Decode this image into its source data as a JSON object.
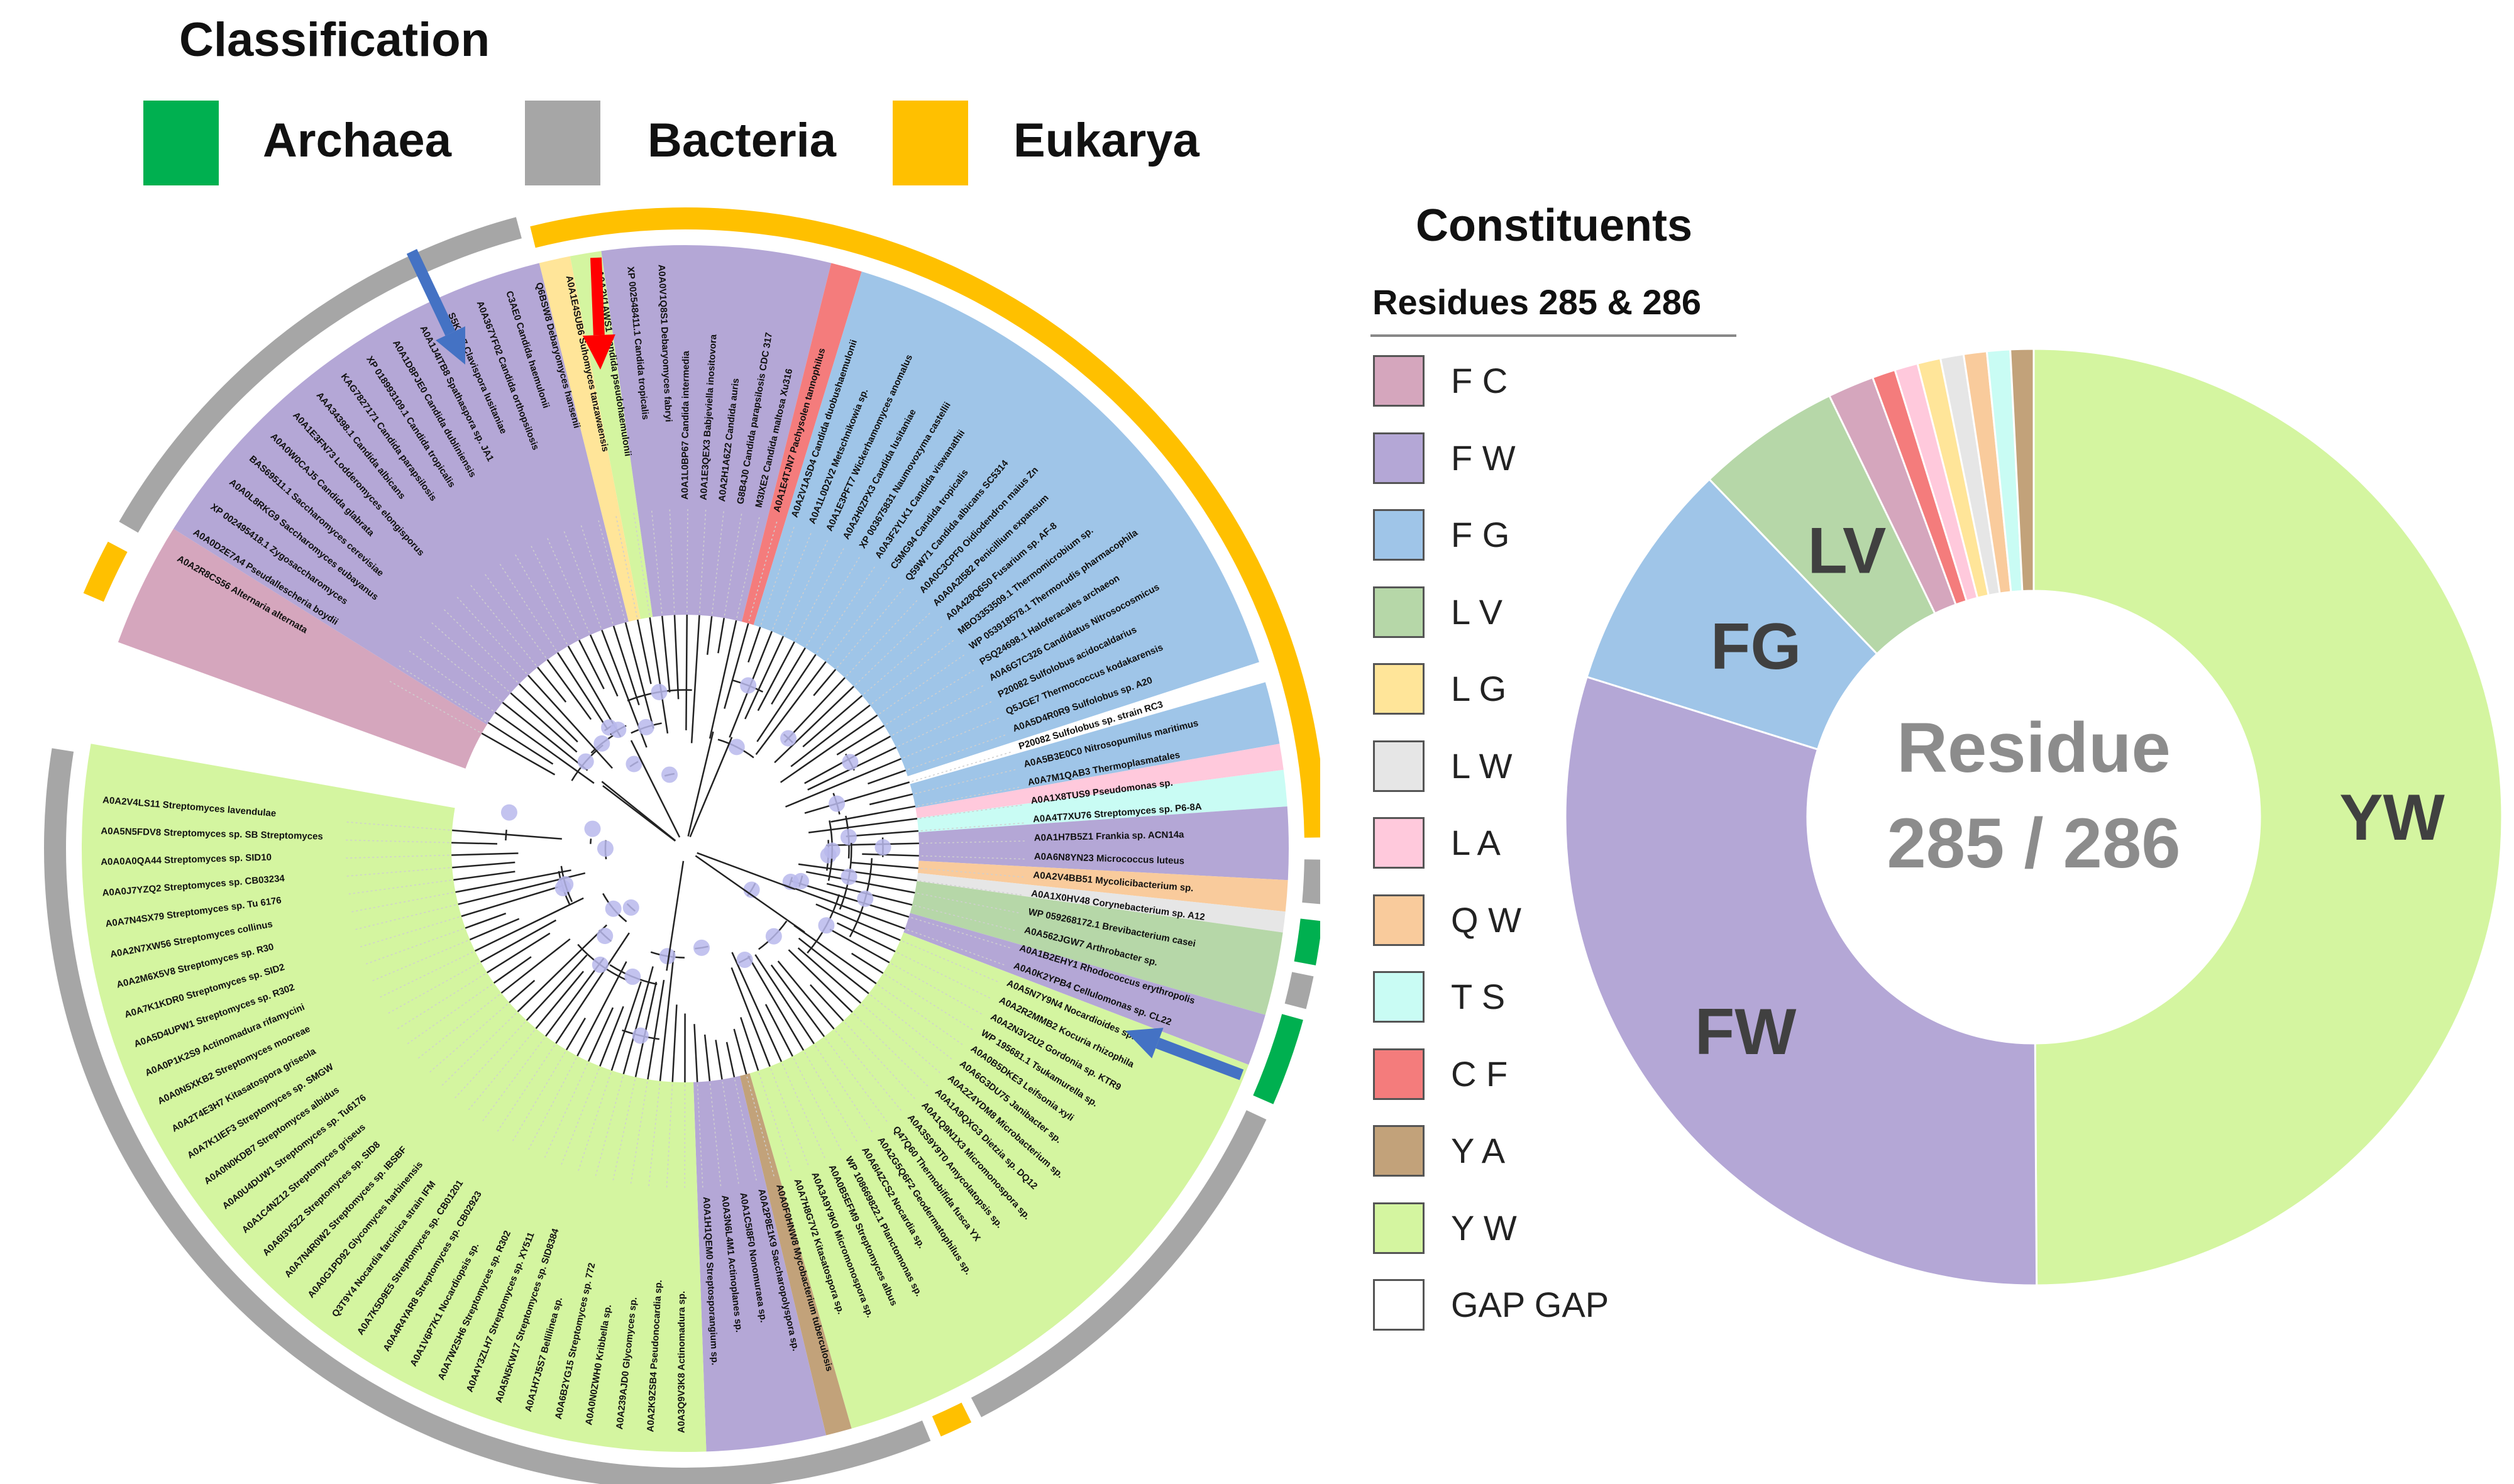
{
  "classification": {
    "title": "Classification",
    "items": [
      {
        "label": "Archaea",
        "color": "#00b050"
      },
      {
        "label": "Bacteria",
        "color": "#a6a6a6"
      },
      {
        "label": "Eukarya",
        "color": "#ffc000"
      }
    ]
  },
  "constituents": {
    "title": "Constituents",
    "subtitle": "Residues 285 & 286",
    "items": [
      {
        "label": "F C",
        "color": "#d5a6bd"
      },
      {
        "label": "F W",
        "color": "#b4a7d6"
      },
      {
        "label": "F G",
        "color": "#9fc5e8"
      },
      {
        "label": "L V",
        "color": "#b6d7a8"
      },
      {
        "label": "L G",
        "color": "#ffe599"
      },
      {
        "label": "L W",
        "color": "#e6e6e6"
      },
      {
        "label": "L A",
        "color": "#ffc9dc"
      },
      {
        "label": "Q W",
        "color": "#f9cb9c"
      },
      {
        "label": "T S",
        "color": "#c9fcf4"
      },
      {
        "label": "C F",
        "color": "#f47c7c"
      },
      {
        "label": "Y A",
        "color": "#c2a27a"
      },
      {
        "label": "Y W",
        "color": "#d4f5a0"
      },
      {
        "label": "GAP GAP",
        "color": "#ffffff"
      }
    ]
  },
  "chart_data": {
    "type": "pie",
    "title": "Residue 285 / 286",
    "title_lines": [
      "Residue",
      "285 / 286"
    ],
    "slices": [
      {
        "label": "YW",
        "value": 50.0,
        "color": "#d4f5a0",
        "shown": true
      },
      {
        "label": "FW",
        "value": 30.0,
        "color": "#b4a7d6",
        "shown": true
      },
      {
        "label": "FG",
        "value": 8.0,
        "color": "#9fc5e8",
        "shown": true
      },
      {
        "label": "LV",
        "value": 5.0,
        "color": "#b6d7a8",
        "shown": true
      },
      {
        "label": "FC",
        "value": 1.6,
        "color": "#d5a6bd",
        "shown": false
      },
      {
        "label": "CF",
        "value": 0.8,
        "color": "#f47c7c",
        "shown": false
      },
      {
        "label": "LA",
        "value": 0.8,
        "color": "#ffc9dc",
        "shown": false
      },
      {
        "label": "LG",
        "value": 0.8,
        "color": "#ffe599",
        "shown": false
      },
      {
        "label": "LW",
        "value": 0.8,
        "color": "#e6e6e6",
        "shown": false
      },
      {
        "label": "QW",
        "value": 0.8,
        "color": "#f9cb9c",
        "shown": false
      },
      {
        "label": "TS",
        "value": 0.8,
        "color": "#c9fcf4",
        "shown": false
      },
      {
        "label": "YA",
        "value": 0.8,
        "color": "#c2a27a",
        "shown": false
      }
    ]
  },
  "tree": {
    "sectors": [
      {
        "color": "#d5a6bd",
        "start": -70,
        "end": -58
      },
      {
        "color": "#b4a7d6",
        "start": -58,
        "end": -14
      },
      {
        "color": "#ffe599",
        "start": -14,
        "end": -11
      },
      {
        "color": "#d4f5a0",
        "start": -11,
        "end": -8
      },
      {
        "color": "#b4a7d6",
        "start": -8,
        "end": 14
      },
      {
        "color": "#f47c7c",
        "start": 14,
        "end": 17
      },
      {
        "color": "#9fc5e8",
        "start": 17,
        "end": 72
      },
      {
        "color": "#ffffff",
        "start": 72,
        "end": 74
      },
      {
        "color": "#9fc5e8",
        "start": 74,
        "end": 80
      },
      {
        "color": "#ffc9dc",
        "start": 80,
        "end": 82.5
      },
      {
        "color": "#c9fcf4",
        "start": 82.5,
        "end": 86
      },
      {
        "color": "#b4a7d6",
        "start": 86,
        "end": 93
      },
      {
        "color": "#f9cb9c",
        "start": 93,
        "end": 96
      },
      {
        "color": "#e6e6e6",
        "start": 96,
        "end": 98
      },
      {
        "color": "#b6d7a8",
        "start": 98,
        "end": 106
      },
      {
        "color": "#b4a7d6",
        "start": 106,
        "end": 111
      },
      {
        "color": "#d4f5a0",
        "start": 111,
        "end": 164
      },
      {
        "color": "#c2a27a",
        "start": 164,
        "end": 166.5
      },
      {
        "color": "#b4a7d6",
        "start": 166.5,
        "end": 178
      },
      {
        "color": "#d4f5a0",
        "start": 178,
        "end": 280
      }
    ],
    "outer_ring": [
      {
        "color": "#ffc000",
        "start": -14,
        "end": 89
      },
      {
        "color": "#a6a6a6",
        "start": 91,
        "end": 95
      },
      {
        "color": "#00b050",
        "start": 96.5,
        "end": 100.5
      },
      {
        "color": "#a6a6a6",
        "start": 101.5,
        "end": 104.5
      },
      {
        "color": "#00b050",
        "start": 105.5,
        "end": 113.5
      },
      {
        "color": "#a6a6a6",
        "start": 115,
        "end": 152.5
      },
      {
        "color": "#ffc000",
        "start": 153.5,
        "end": 156.5
      },
      {
        "color": "#a6a6a6",
        "start": 157.5,
        "end": 279
      },
      {
        "color": "#ffc000",
        "start": -67,
        "end": -62
      },
      {
        "color": "#a6a6a6",
        "start": -60,
        "end": -15
      }
    ],
    "leaf_labels": [
      "A0A2R8CS56 Alternaria alternata",
      "A0A0D2E7A4 Pseudallescheria boydii",
      "XP 002495418.1 Zygosaccharomyces",
      "A0A0L8RKG9 Saccharomyces eubayanus",
      "BAS69511.1 Saccharomyces cerevisiae",
      "A0A0W0CAJ5 Candida glabrata",
      "A0A1E3FN73 Lodderomyces elongisporus",
      "AAA34398.1 Candida albicans",
      "KAG7827171 Candida parapsilosis",
      "XP 018993109.1 Candida tropicalis",
      "A0A1D8PJE0 Candida dubliniensis",
      "A0A1J4ITB8 Spathaspora sp. JA1",
      "S5K2L7 Clavispora lusitaniae",
      "A0A367YF02 Candida orthopsilosis",
      "C3AE0 Candida haemulonii",
      "Q6BSW8 Debaryomyces hansenii",
      "A0A1E4SUB6 Suhomyces tanzawaensis",
      "A0A2V1AWS1 Candida pseudohaemulonii",
      "XP 002548411.1 Candida tropicalis",
      "A0A0V1Q8S1 Debaryomyces fabryi",
      "A0A1L0BP67 Candida intermedia",
      "A0A1E3QEX3 Babjeviella inositovora",
      "A0A2H1A6Z2 Candida auris",
      "G8B4J0 Candida parapsilosis CDC 317",
      "M3IXE2 Candida maltosa Xu316",
      "A0A1E4TJN7 Pachysolen tannophilus",
      "A0A2V1ASD4 Candida duobushaemulonii",
      "A0A1L0D2V2 Metschnikowia sp.",
      "A0A1E3PFT7 Wickerhamomyces anomalus",
      "A0A2H0ZPX3 Candida lusitaniae",
      "XP 003675831 Naumovozyma castellii",
      "A0A3F2YLK1 Candida viswanathii",
      "C5MG94 Candida tropicalis",
      "Q59W71 Candida albicans SC5314",
      "A0A0C3CPF0 Oidiodendron maius Zn",
      "A0A0A2I582 Penicillium expansum",
      "A0A428Q6S0 Fusarium sp. AF-8",
      "MBO3353509.1 Thermomicrobium sp.",
      "WP 053918578.1 Thermorudis pharmacophila",
      "PSQ24698.1 Haloferacales archaeon",
      "A0A6G7C326 Candidatus Nitrosocosmicus",
      "P20082 Sulfolobus acidocaldarius",
      "Q5JGE7 Thermococcus kodakarensis",
      "A0A5D4R0R9 Sulfolobus sp. A20",
      "P20082 Sulfolobus sp. strain RC3",
      "A0A5B3E0C0 Nitrosopumilus maritimus",
      "A0A7M1QAB3 Thermoplasmatales",
      "A0A1X8TUS9 Pseudomonas sp.",
      "A0A4T7XU76 Streptomyces sp. P6-8A",
      "A0A1H7B5Z1 Frankia sp. ACN14a",
      "A0A6N8YN23 Micrococcus luteus",
      "A0A2V4BB51 Mycolicibacterium sp.",
      "A0A1X0HV48 Corynebacterium sp. A12",
      "WP 059268172.1 Brevibacterium casei",
      "A0A562JGW7 Arthrobacter sp.",
      "A0A1B2EHY1 Rhodococcus erythropolis",
      "A0A0K2YPB4 Cellulomonas sp. CL22",
      "A0A5N7Y9N4 Nocardioides sp.",
      "A0A2R2MMB2 Kocuria rhizophila",
      "A0A2N3V2U2 Gordonia sp. KTR9",
      "WP 195681.1 Tsukamurella sp.",
      "A0A0B5DKE3 Leifsonia xyli",
      "A0A6G3DU75 Janibacter sp.",
      "A0A2Z4YDM8 Microbacterium sp.",
      "A0A1A9QXG3 Dietzia sp. DQ12",
      "A0A1Q9N1X3 Micromonospora sp.",
      "A0A3S9Y9T0 Amycolatopsis sp.",
      "Q47Q60 Thermobifida fusca YX",
      "A0A2G5Q6F2 Geodermatophilus sp.",
      "A0A6I4ZCS2 Nocardia sp.",
      "WP 108669822.1 Planctomonas sp.",
      "A0A0B5EFM9 Streptomyces albus",
      "A0A3A9Y9K0 Micromonospora sp.",
      "A0A7H8G7V2 Kitasatospora sp.",
      "A0A0F0HNW8 Mycobacterium tuberculosis",
      "A0A2P8E1K9 Saccharopolyspora sp.",
      "A0A1C5I8F0 Nonomuraea sp.",
      "A0A3N6L4M1 Actinoplanes sp.",
      "A0A1H1QEM0 Streptosporangium sp.",
      "A0A3Q9V3K8 Actinomadura sp.",
      "A0A2K9ZSB4 Pseudonocardia sp.",
      "A0A239AJD0 Glycomyces sp.",
      "A0A0N0ZWH0 Kribbella sp.",
      "A0A6B2YG15 Streptomyces sp. 772",
      "A0A1H7J5S7 Bellilinea sp.",
      "A0A5N5KW17 Streptomyces sp. SID8384",
      "A0A4Y3ZLH7 Streptomyces sp. XY511",
      "A0A7W2SH6 Streptomyces sp. R302",
      "A0A1V6P7K1 Nocardiopsis sp.",
      "A0A4R4YAR8 Streptomyces sp. CB02923",
      "A0A7K5D9E5 Streptomyces sp. CB01201",
      "Q3T9Y4 Nocardia farcinica strain IFM",
      "A0A0G1PD92 Glycomyces harbinensis",
      "A0A7N4R0W2 Streptomyces sp. IBSBF",
      "A0A6I3V5Z2 Streptomyces sp. SID8",
      "A0A1C4NZ12 Streptomyces griseus",
      "A0A0U4DUW1 Streptomyces sp. Tu6176",
      "A0A0N0KDB7 Streptomyces albidus",
      "A0A7K1IEF3 Streptomyces sp. SMGW",
      "A0A2T4E3H7 Kitasatospora griseola",
      "A0A0N5XKB2 Streptomyces mooreae",
      "A0A0P1K2S9 Actinomadura rifamycini",
      "A0A5D4UPW1 Streptomyces sp. R302",
      "A0A7K1KDR0 Streptomyces sp. SID2",
      "A0A2M6X5V8 Streptomyces sp. R30",
      "A0A2N7XW56 Streptomyces collinus",
      "A0A7N4SX79 Streptomyces sp. Tu 6176",
      "A0A0J7YZQ2 Streptomyces sp. CB03234",
      "A0A0A0QA44 Streptomyces sp. SID10",
      "A0A5N5FDV8 Streptomyces sp. SB Streptomyces",
      "A0A2V4LS11 Streptomyces lavendulae"
    ]
  },
  "annotations": {
    "arrows": [
      {
        "name": "blue-arrow-top",
        "color": "#4472c4"
      },
      {
        "name": "red-arrow",
        "color": "#ff0000"
      },
      {
        "name": "blue-arrow-right",
        "color": "#4472c4"
      }
    ]
  }
}
